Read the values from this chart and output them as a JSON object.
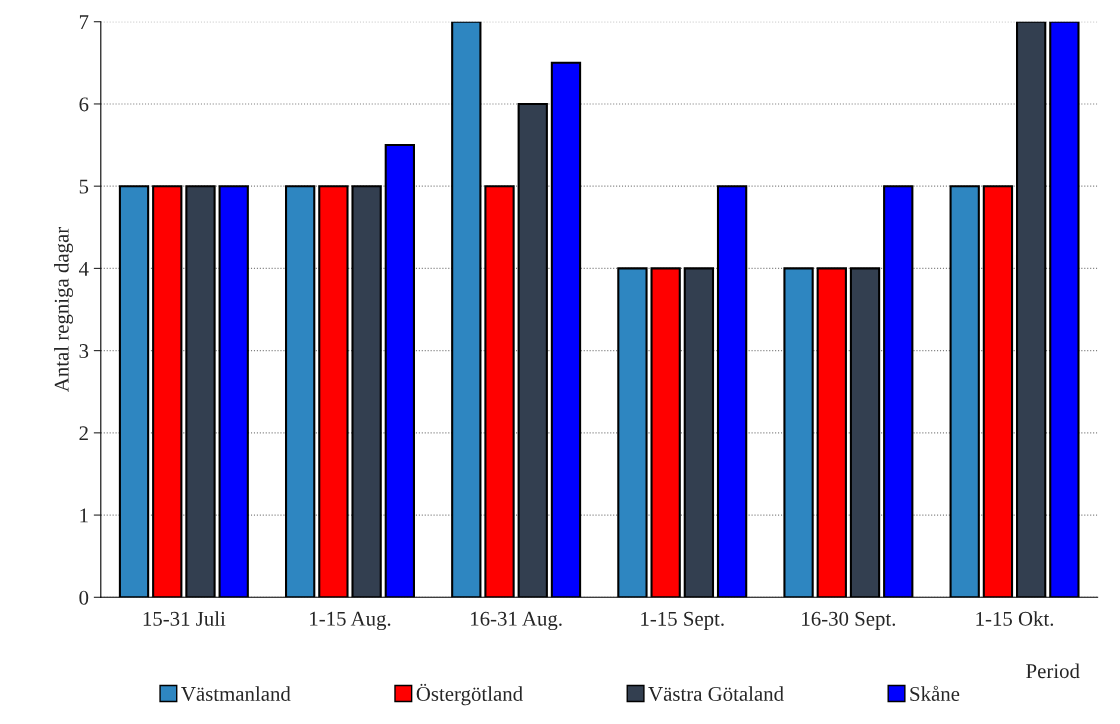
{
  "chart_data": {
    "type": "bar",
    "xlabel": "Period",
    "ylabel": "Antal regniga dagar",
    "categories": [
      "15-31 Juli",
      "1-15 Aug.",
      "16-31 Aug.",
      "1-15 Sept.",
      "16-30 Sept.",
      "1-15 Okt."
    ],
    "series": [
      {
        "name": "Västmanland",
        "color": "#2e86c1",
        "values": [
          5,
          5,
          7,
          4,
          4,
          5
        ]
      },
      {
        "name": "Östergötland",
        "color": "#ff0000",
        "values": [
          5,
          5,
          5,
          4,
          4,
          5
        ]
      },
      {
        "name": "Västra Götaland",
        "color": "#333f50",
        "values": [
          5,
          5,
          6,
          4,
          4,
          7
        ]
      },
      {
        "name": "Skåne",
        "color": "#0000ff",
        "values": [
          5,
          5.5,
          6.5,
          5,
          5,
          7
        ]
      }
    ],
    "ylim": [
      0,
      7
    ],
    "yticks": [
      0,
      1,
      2,
      3,
      4,
      5,
      6,
      7
    ],
    "grid": "y",
    "legend": "bottom"
  }
}
